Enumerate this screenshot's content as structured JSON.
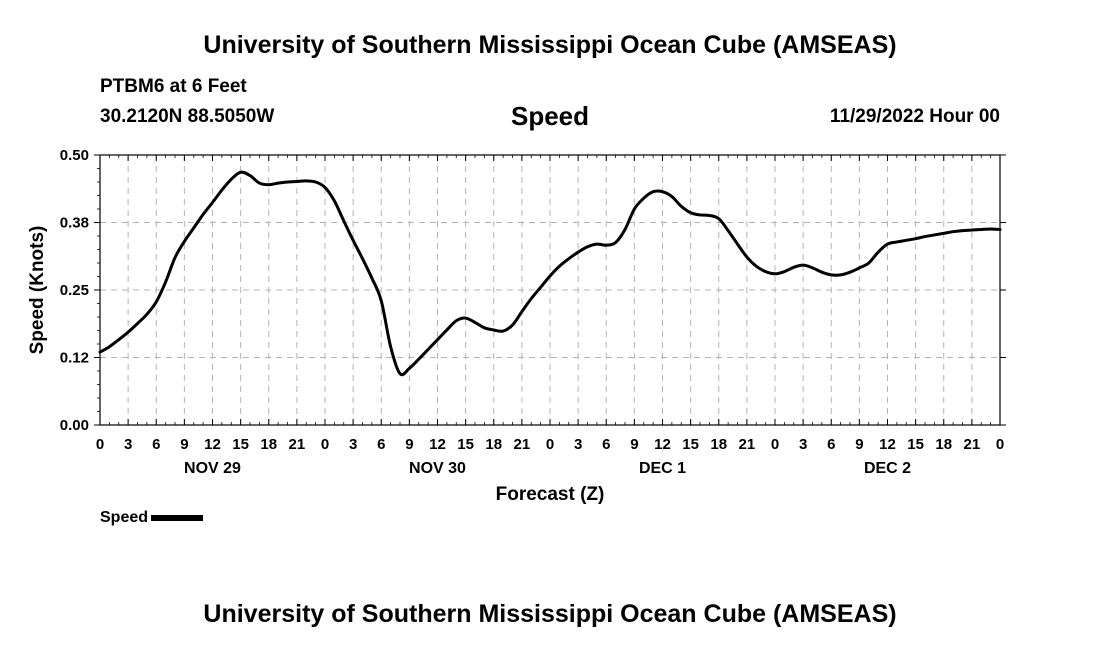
{
  "header": {
    "title": "University of Southern Mississippi Ocean Cube (AMSEAS)",
    "station": "PTBM6 at 6 Feet",
    "coords": "30.2120N  88.5050W",
    "variable": "Speed",
    "timestamp": "11/29/2022 Hour 00"
  },
  "footer": {
    "title": "University of Southern Mississippi Ocean Cube (AMSEAS)"
  },
  "legend": {
    "label": "Speed"
  },
  "colors": {
    "line": "#000000",
    "grid": "#b4b4b4",
    "background": "#ffffff"
  },
  "chart_data": {
    "type": "line",
    "title": "Speed",
    "xlabel": "Forecast (Z)",
    "ylabel": "Speed (Knots)",
    "ylim": [
      0,
      0.5
    ],
    "xlim": [
      0,
      96
    ],
    "x_unit": "hours from 11/29/2022 00Z",
    "y_ticks": [
      "0.00",
      "0.12",
      "0.25",
      "0.38",
      "0.50"
    ],
    "y_tick_values": [
      0,
      0.125,
      0.25,
      0.375,
      0.5
    ],
    "x_tick_labels": [
      "0",
      "3",
      "6",
      "9",
      "12",
      "15",
      "18",
      "21",
      "0",
      "3",
      "6",
      "9",
      "12",
      "15",
      "18",
      "21",
      "0",
      "3",
      "6",
      "9",
      "12",
      "15",
      "18",
      "21",
      "0",
      "3",
      "6",
      "9",
      "12",
      "15",
      "18",
      "21",
      "0"
    ],
    "day_labels": [
      {
        "label": "NOV 29",
        "hour": 12
      },
      {
        "label": "NOV 30",
        "hour": 36
      },
      {
        "label": "DEC 1",
        "hour": 60
      },
      {
        "label": "DEC 2",
        "hour": 84
      }
    ],
    "grid": true,
    "legend_position": "bottom-left",
    "series": [
      {
        "name": "Speed",
        "x": [
          0,
          1,
          2,
          3,
          4,
          5,
          6,
          7,
          8,
          9,
          10,
          11,
          12,
          13,
          14,
          15,
          16,
          17,
          18,
          19,
          20,
          21,
          22,
          23,
          24,
          25,
          26,
          27,
          28,
          29,
          30,
          31,
          32,
          33,
          34,
          35,
          36,
          37,
          38,
          39,
          40,
          41,
          42,
          43,
          44,
          45,
          46,
          47,
          48,
          49,
          50,
          51,
          52,
          53,
          54,
          55,
          56,
          57,
          58,
          59,
          60,
          61,
          62,
          63,
          64,
          65,
          66,
          67,
          68,
          69,
          70,
          71,
          72,
          73,
          74,
          75,
          76,
          77,
          78,
          79,
          80,
          81,
          82,
          83,
          84,
          85,
          86,
          87,
          88,
          89,
          90,
          91,
          92,
          93,
          94,
          95,
          96
        ],
        "values": [
          0.135,
          0.145,
          0.158,
          0.172,
          0.188,
          0.205,
          0.228,
          0.265,
          0.31,
          0.34,
          0.365,
          0.39,
          0.412,
          0.435,
          0.455,
          0.468,
          0.462,
          0.448,
          0.445,
          0.448,
          0.45,
          0.451,
          0.452,
          0.45,
          0.44,
          0.415,
          0.378,
          0.342,
          0.308,
          0.272,
          0.23,
          0.145,
          0.095,
          0.105,
          0.122,
          0.14,
          0.158,
          0.176,
          0.193,
          0.198,
          0.19,
          0.18,
          0.176,
          0.174,
          0.185,
          0.21,
          0.234,
          0.255,
          0.276,
          0.294,
          0.308,
          0.32,
          0.33,
          0.335,
          0.333,
          0.338,
          0.362,
          0.4,
          0.42,
          0.432,
          0.432,
          0.423,
          0.405,
          0.393,
          0.389,
          0.388,
          0.382,
          0.36,
          0.335,
          0.311,
          0.294,
          0.284,
          0.28,
          0.284,
          0.292,
          0.296,
          0.291,
          0.283,
          0.278,
          0.278,
          0.283,
          0.291,
          0.3,
          0.32,
          0.335,
          0.339,
          0.342,
          0.345,
          0.349,
          0.352,
          0.355,
          0.358,
          0.36,
          0.361,
          0.362,
          0.363,
          0.362
        ]
      }
    ]
  }
}
